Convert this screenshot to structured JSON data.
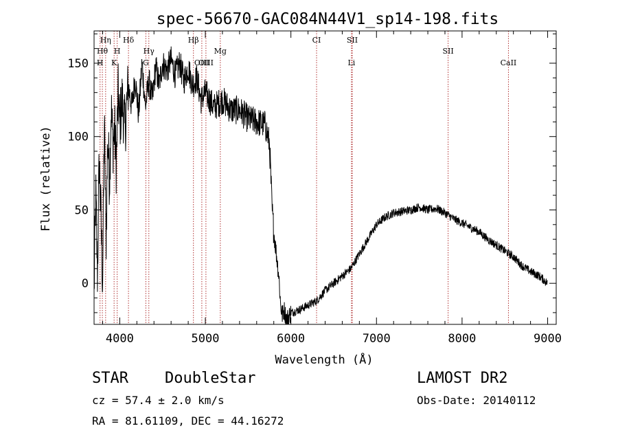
{
  "chart_data": {
    "type": "line",
    "title": "spec-56670-GAC084N44V1_sp14-198.fits",
    "xlabel": "Wavelength (Å)",
    "ylabel": "Flux (relative)",
    "xlim": [
      3700,
      9100
    ],
    "ylim": [
      -28,
      172
    ],
    "x_ticks": [
      {
        "value": 4000,
        "label": "4000"
      },
      {
        "value": 5000,
        "label": "5000"
      },
      {
        "value": 6000,
        "label": "6000"
      },
      {
        "value": 7000,
        "label": "7000"
      },
      {
        "value": 8000,
        "label": "8000"
      },
      {
        "value": 9000,
        "label": "9000"
      }
    ],
    "y_ticks": [
      {
        "value": 0,
        "label": "0"
      },
      {
        "value": 50,
        "label": "50"
      },
      {
        "value": 100,
        "label": "100"
      },
      {
        "value": 150,
        "label": "150"
      }
    ],
    "line_markers": [
      {
        "label": "Hη",
        "wavelength": 3835,
        "row": 0
      },
      {
        "label": "Hθ",
        "wavelength": 3797,
        "row": 1
      },
      {
        "label": "H",
        "wavelength": 3970,
        "row": 1
      },
      {
        "label": "Hδ",
        "wavelength": 4102,
        "row": 0
      },
      {
        "label": "Hγ",
        "wavelength": 4340,
        "row": 1
      },
      {
        "label": "Hβ",
        "wavelength": 4861,
        "row": 0
      },
      {
        "label": "Mg",
        "wavelength": 5175,
        "row": 1
      },
      {
        "label": "H",
        "wavelength": 3770,
        "row": 2
      },
      {
        "label": "K",
        "wavelength": 3934,
        "row": 2
      },
      {
        "label": "G",
        "wavelength": 4305,
        "row": 2
      },
      {
        "label": "OIII",
        "wavelength": 4959,
        "row": 2
      },
      {
        "label": "OIII",
        "wavelength": 5007,
        "row": 2
      },
      {
        "label": "CI",
        "wavelength": 6300,
        "row": 0
      },
      {
        "label": "SII",
        "wavelength": 6717,
        "row": 0
      },
      {
        "label": "Li",
        "wavelength": 6708,
        "row": 2
      },
      {
        "label": "SII",
        "wavelength": 7837,
        "row": 1
      },
      {
        "label": "CaII",
        "wavelength": 8542,
        "row": 2
      }
    ],
    "marker_wavelengths": [
      3770,
      3797,
      3835,
      3934,
      3970,
      4102,
      4305,
      4340,
      4861,
      4959,
      5007,
      5175,
      6300,
      6708,
      6717,
      7837,
      8542
    ],
    "series": [
      {
        "x": [
          3700,
          3720,
          3740,
          3760,
          3780,
          3800,
          3820,
          3840,
          3860,
          3880,
          3900,
          3920,
          3940,
          3960,
          3980,
          4000,
          4030,
          4060,
          4100,
          4140,
          4180,
          4220,
          4260,
          4300,
          4340,
          4380,
          4420,
          4460,
          4500,
          4550,
          4600,
          4650,
          4700,
          4750,
          4800,
          4850,
          4900,
          4950,
          5000,
          5100,
          5200,
          5300,
          5400,
          5500,
          5600,
          5700,
          5750,
          5780,
          5800,
          5830,
          5860,
          5880,
          5900,
          5920,
          5950,
          6000,
          6100,
          6200,
          6300,
          6400,
          6500,
          6600,
          6700,
          6800,
          6900,
          7000,
          7100,
          7200,
          7300,
          7400,
          7500,
          7600,
          7700,
          7800,
          7900,
          8000,
          8100,
          8200,
          8300,
          8400,
          8500,
          8600,
          8700,
          8800,
          8900,
          9000
        ],
        "y": [
          -5,
          60,
          5,
          85,
          45,
          0,
          110,
          30,
          100,
          70,
          120,
          95,
          105,
          80,
          130,
          110,
          125,
          105,
          135,
          120,
          140,
          115,
          150,
          120,
          138,
          125,
          148,
          135,
          150,
          145,
          152,
          142,
          150,
          138,
          147,
          135,
          140,
          125,
          130,
          120,
          125,
          118,
          118,
          112,
          110,
          108,
          95,
          50,
          35,
          20,
          5,
          -15,
          -22,
          -18,
          -25,
          -20,
          -18,
          -15,
          -12,
          -5,
          0,
          5,
          10,
          20,
          30,
          40,
          45,
          48,
          49,
          50,
          52,
          50,
          51,
          48,
          44,
          41,
          38,
          35,
          30,
          26,
          22,
          18,
          12,
          8,
          5,
          0
        ]
      }
    ]
  },
  "info": {
    "object_class": "STAR",
    "subclass": "DoubleStar",
    "survey": "LAMOST DR2",
    "redshift": "cz = 57.4 ± 2.0 km/s",
    "obs_date": "Obs-Date: 20140112",
    "coords": "RA =  81.61109, DEC =  44.16272"
  }
}
